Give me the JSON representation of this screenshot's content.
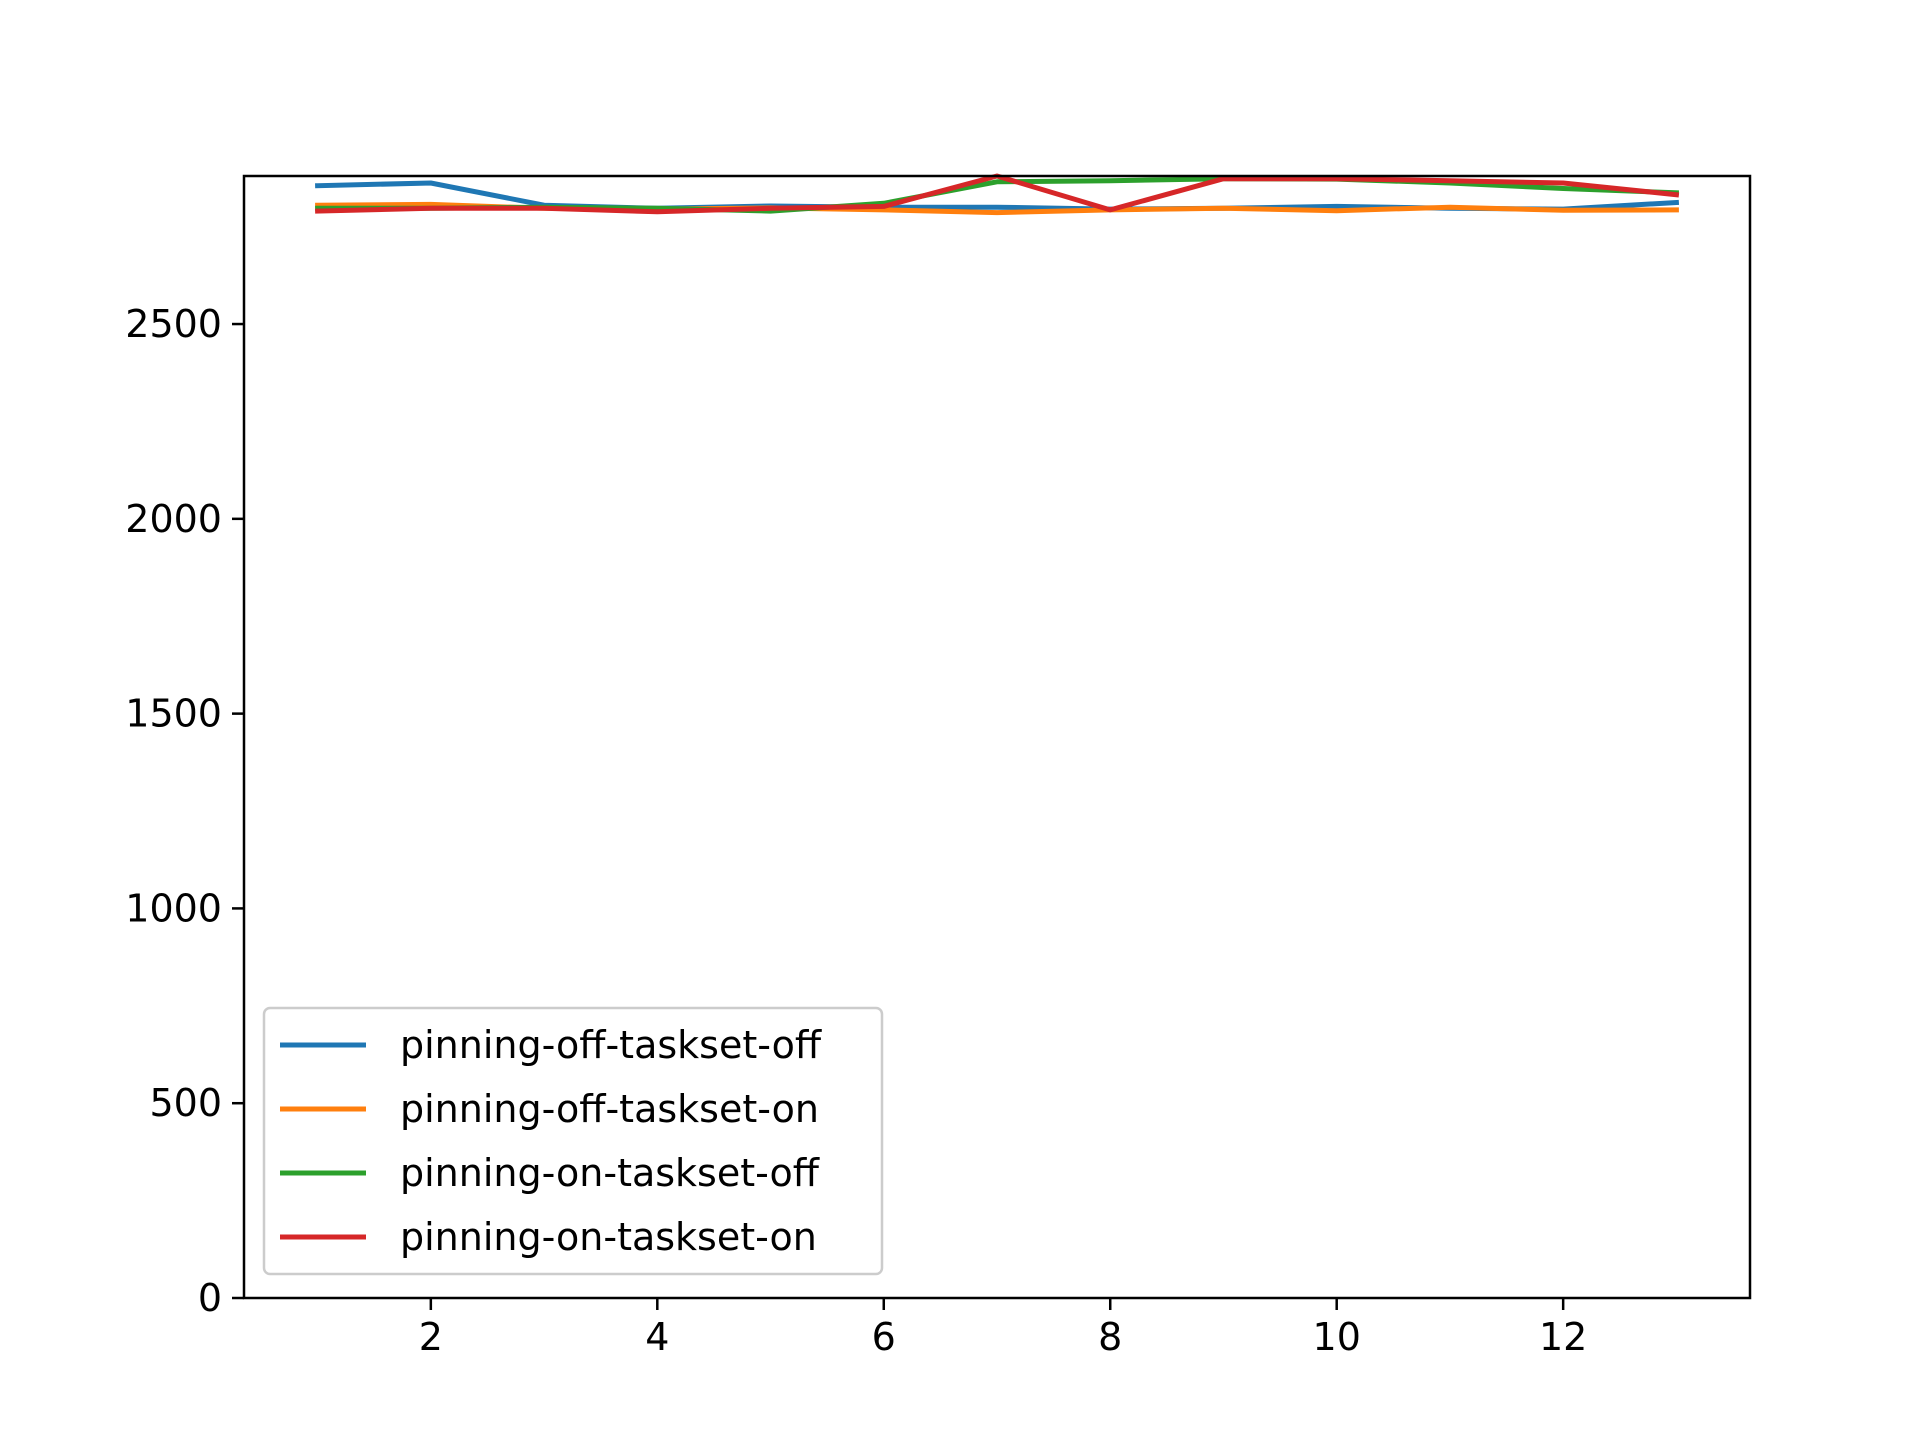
{
  "chart_data": {
    "type": "line",
    "title": "",
    "xlabel": "",
    "ylabel": "",
    "x": [
      1,
      2,
      3,
      4,
      5,
      6,
      7,
      8,
      9,
      10,
      11,
      12,
      13
    ],
    "xlim": [
      0.35,
      13.65
    ],
    "ylim": [
      0,
      2880
    ],
    "xticks": [
      2,
      4,
      6,
      8,
      10,
      12
    ],
    "yticks": [
      0,
      500,
      1000,
      1500,
      2000,
      2500
    ],
    "grid": false,
    "legend_position": "lower-left",
    "series": [
      {
        "name": "pinning-off-taskset-off",
        "color": "#1f77b4",
        "values": [
          2855,
          2862,
          2805,
          2797,
          2803,
          2800,
          2800,
          2795,
          2797,
          2802,
          2797,
          2795,
          2812
        ]
      },
      {
        "name": "pinning-off-taskset-on",
        "color": "#ff7f0e",
        "values": [
          2805,
          2807,
          2797,
          2795,
          2798,
          2793,
          2786,
          2793,
          2797,
          2791,
          2800,
          2792,
          2793
        ]
      },
      {
        "name": "pinning-on-taskset-off",
        "color": "#2ca02c",
        "values": [
          2797,
          2797,
          2800,
          2797,
          2790,
          2810,
          2865,
          2868,
          2873,
          2872,
          2862,
          2848,
          2837
        ]
      },
      {
        "name": "pinning-on-taskset-on",
        "color": "#d62728",
        "values": [
          2790,
          2797,
          2797,
          2788,
          2797,
          2802,
          2880,
          2793,
          2873,
          2873,
          2868,
          2862,
          2832
        ]
      }
    ]
  }
}
